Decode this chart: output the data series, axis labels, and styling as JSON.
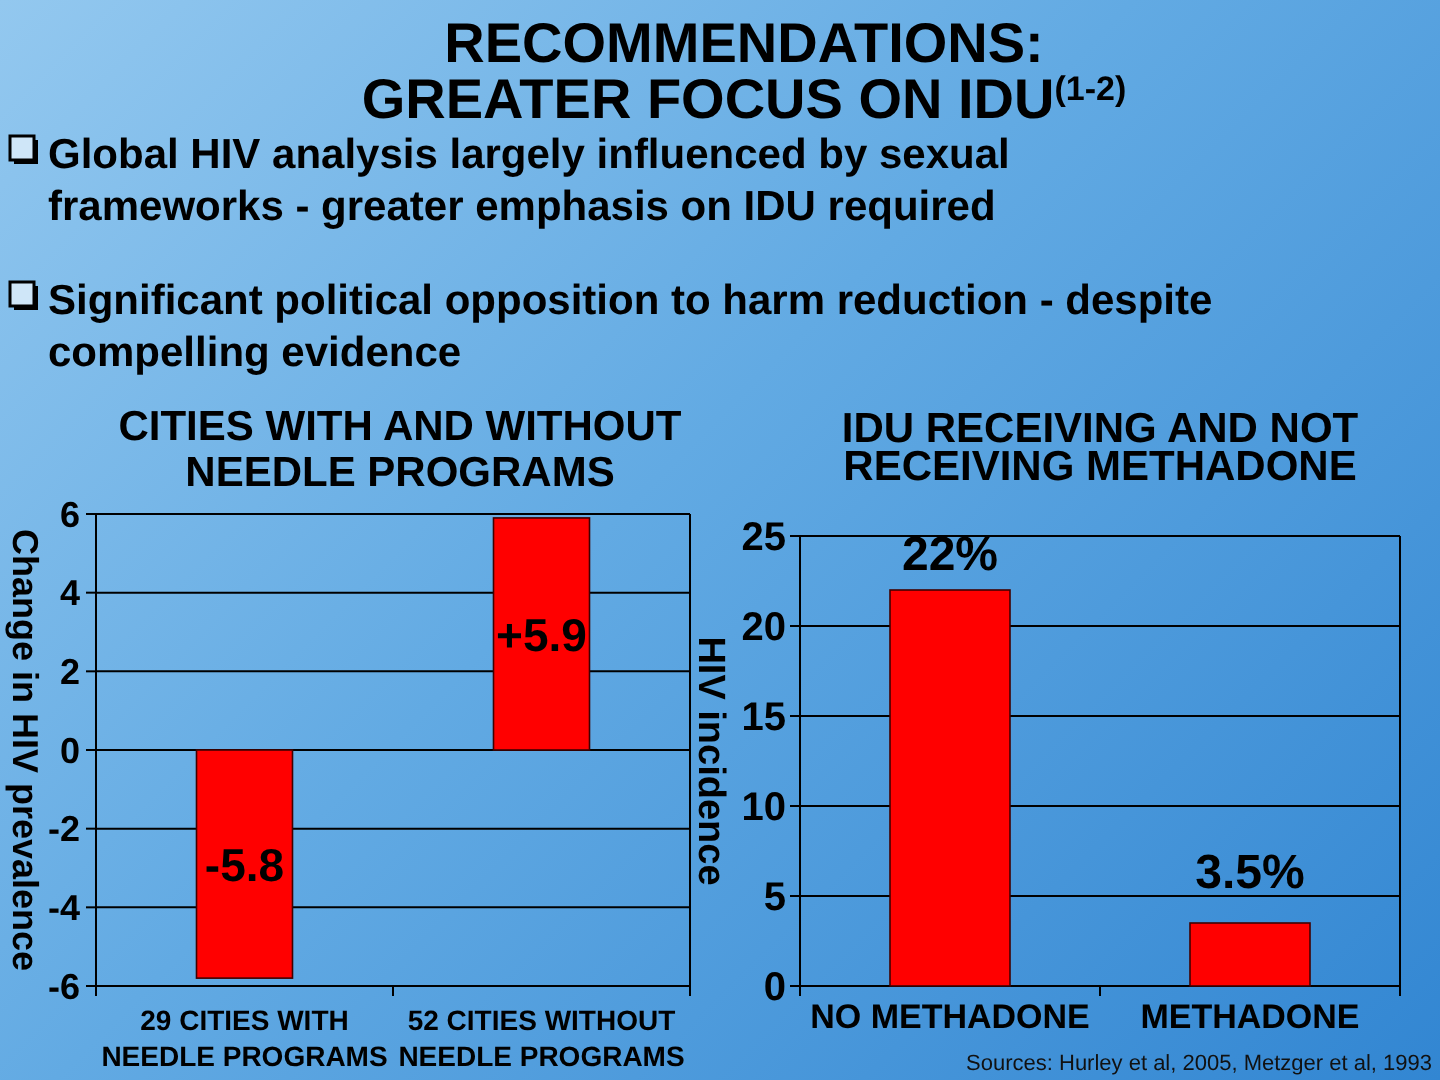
{
  "chart_data": [
    {
      "type": "other",
      "title": "RECOMMENDATIONS:\nGREATER FOCUS ON IDU$^{(1-2)}$",
      "annotations": [
        "Global HIV analysis largely influenced by sexual\nframeworks - greater emphasis on IDU required",
        "Significant political opposition to harm reduction - despite\ncompelling evidence"
      ]
    },
    {
      "type": "bar",
      "title": "CITIES WITH AND WITHOUT\nNEEDLE PROGRAMS",
      "ylabel": "Change in HIV prevalence",
      "categories": [
        "29 CITIES WITH\nNEEDLE PROGRAMS",
        "52 CITIES WITHOUT\nNEEDLE PROGRAMS"
      ],
      "values": [
        -5.8,
        5.9
      ],
      "color": "#ff0000",
      "ylim": [
        -6,
        6
      ],
      "yticks": [
        -6,
        -4,
        -2,
        0,
        2,
        4,
        6
      ],
      "grid": "y",
      "value_labels": [
        "-5.8",
        "+5.9"
      ]
    },
    {
      "type": "bar",
      "title": "IDU RECEIVING AND NOT\nRECEIVING METHADONE",
      "ylabel": "HIV incidence",
      "categories": [
        "NO METHADONE",
        "METHADONE"
      ],
      "values": [
        22,
        3.5
      ],
      "color": "#ff0000",
      "ylim": [
        0,
        25
      ],
      "yticks": [
        0,
        5,
        10,
        15,
        20,
        25
      ],
      "grid": "y",
      "value_labels": [
        "22%",
        "3.5%"
      ],
      "annotations": [
        "Sources: Hurley et al, 2005, Metzger et al, 1993"
      ]
    }
  ]
}
